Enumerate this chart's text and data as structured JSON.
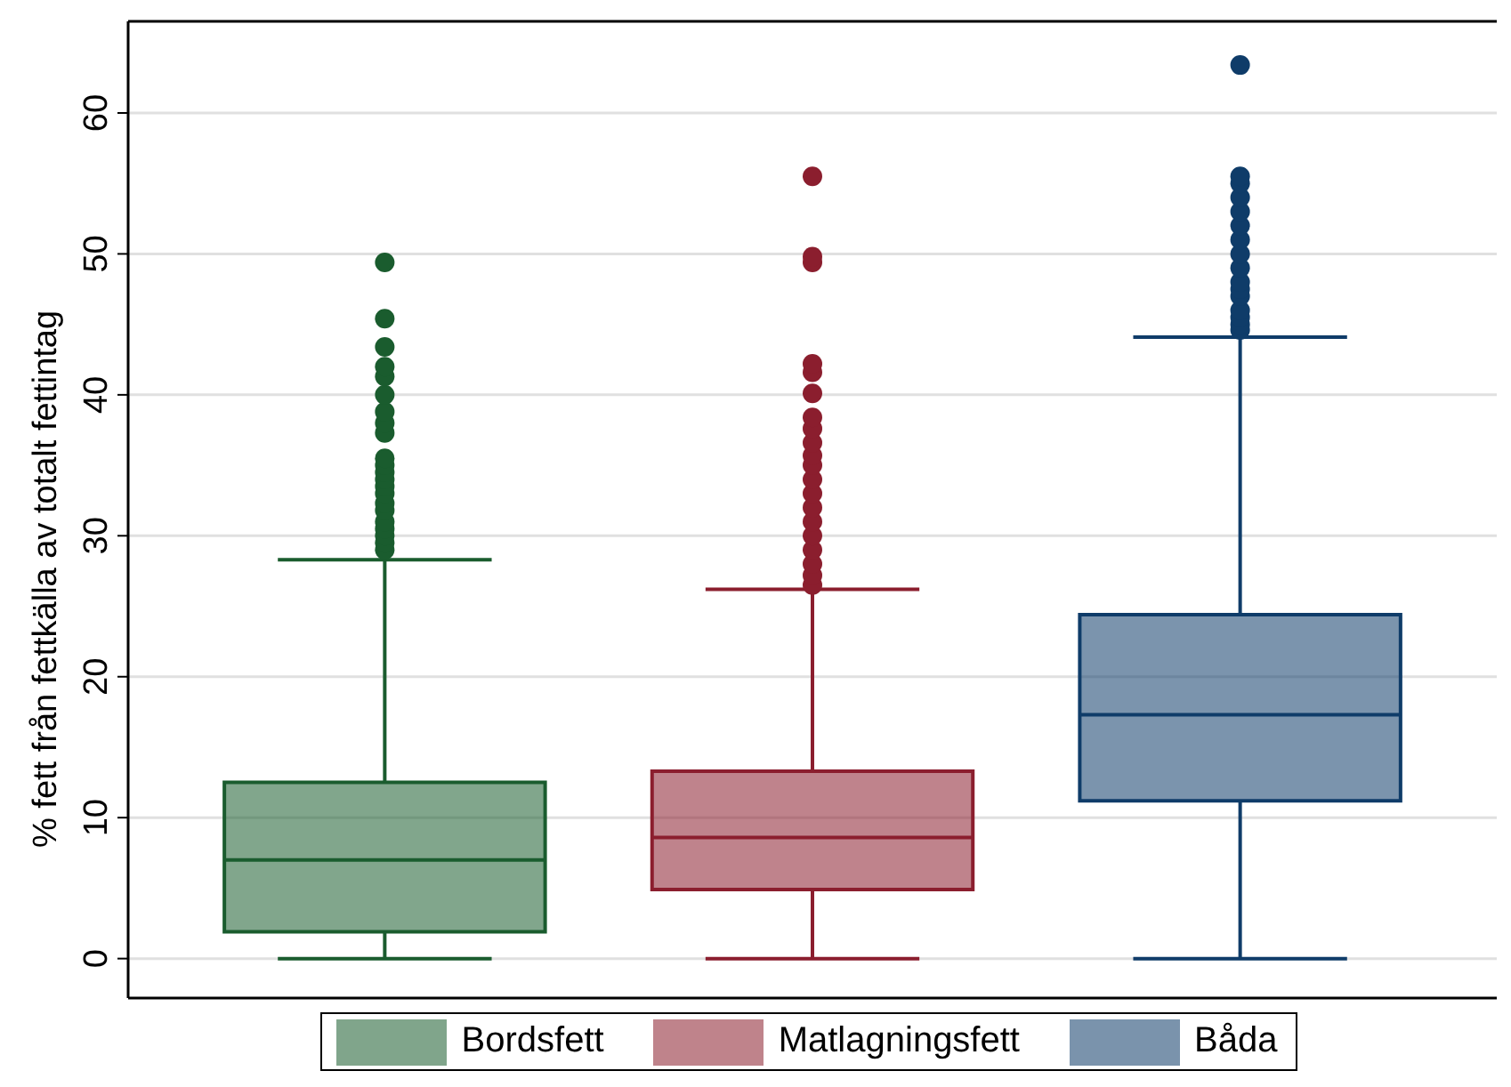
{
  "chart_data": {
    "type": "box",
    "ylabel": "% fett från fettkälla av totalt fettintag",
    "categories": [
      null,
      null,
      null
    ],
    "ylim": [
      -2.8,
      66.5
    ],
    "yticks": [
      0,
      10,
      20,
      30,
      40,
      50,
      60
    ],
    "grid": "y",
    "legend": "bottom",
    "tick_labels": "y",
    "marker": "circle",
    "series": [
      {
        "name": "Bordsfett",
        "color": "#1a5c2e",
        "boxes": [
          {
            "low": 0,
            "q1": 1.9,
            "median": 7.0,
            "q3": 12.5,
            "high": 28.3,
            "outliers": [
              29,
              29.5,
              30,
              30.5,
              31,
              31.8,
              32.3,
              33,
              33.5,
              34,
              34.5,
              35,
              35.5,
              37.3,
              38,
              38.8,
              40,
              41.3,
              42,
              43.4,
              45.4,
              49.4
            ]
          },
          null,
          null
        ]
      },
      {
        "name": "Matlagningsfett",
        "color": "#8b1e2e",
        "boxes": [
          null,
          {
            "low": 0,
            "q1": 4.9,
            "median": 8.6,
            "q3": 13.3,
            "high": 26.2,
            "outliers": [
              26.5,
              27.2,
              28,
              29,
              30,
              31,
              32,
              33,
              34,
              35,
              35.7,
              36.6,
              37.6,
              38.4,
              40.1,
              41.6,
              42.2,
              49.4,
              49.8,
              55.5
            ]
          },
          null
        ]
      },
      {
        "name": "Båda",
        "color": "#0f3c69",
        "boxes": [
          null,
          null,
          {
            "low": 0,
            "q1": 11.2,
            "median": 17.3,
            "q3": 24.4,
            "high": 44.1,
            "outliers": [
              44.6,
              45,
              45.5,
              46,
              47,
              47.5,
              48,
              49,
              50,
              51,
              52,
              53,
              54,
              55,
              55.5,
              63.4
            ]
          }
        ]
      }
    ]
  }
}
